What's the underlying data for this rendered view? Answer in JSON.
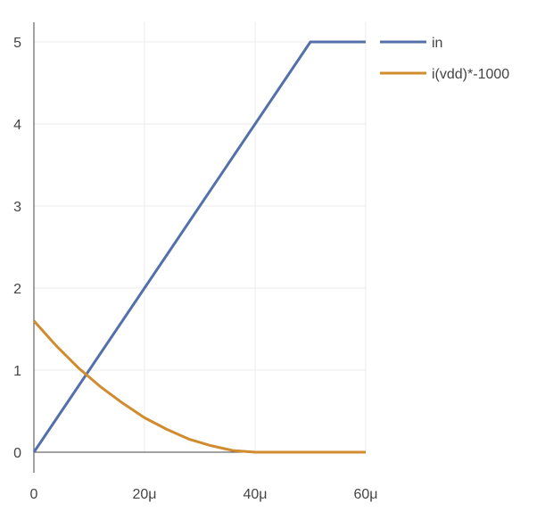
{
  "chart_data": {
    "type": "line",
    "title": "",
    "xlabel": "",
    "ylabel": "",
    "xlim": [
      0,
      60
    ],
    "ylim": [
      0,
      5
    ],
    "x_ticks": [
      {
        "value": 0,
        "label": "0"
      },
      {
        "value": 20,
        "label": "20μ"
      },
      {
        "value": 40,
        "label": "40μ"
      },
      {
        "value": 60,
        "label": "60μ"
      }
    ],
    "y_ticks": [
      {
        "value": 0,
        "label": "0"
      },
      {
        "value": 1,
        "label": "1"
      },
      {
        "value": 2,
        "label": "2"
      },
      {
        "value": 3,
        "label": "3"
      },
      {
        "value": 4,
        "label": "4"
      },
      {
        "value": 5,
        "label": "5"
      }
    ],
    "grid": true,
    "legend_position": "top-right",
    "series": [
      {
        "name": "in",
        "color": "#5470aa",
        "points": [
          [
            0,
            0
          ],
          [
            50,
            5
          ],
          [
            60,
            5
          ]
        ]
      },
      {
        "name": "i(vdd)*-1000",
        "color": "#d08c2e",
        "points": [
          [
            0,
            1.6
          ],
          [
            4,
            1.3
          ],
          [
            8,
            1.03
          ],
          [
            12,
            0.8
          ],
          [
            16,
            0.6
          ],
          [
            20,
            0.42
          ],
          [
            24,
            0.28
          ],
          [
            28,
            0.16
          ],
          [
            32,
            0.08
          ],
          [
            36,
            0.02
          ],
          [
            40,
            0.0
          ],
          [
            50,
            0.0
          ],
          [
            60,
            0.0
          ]
        ]
      }
    ]
  }
}
